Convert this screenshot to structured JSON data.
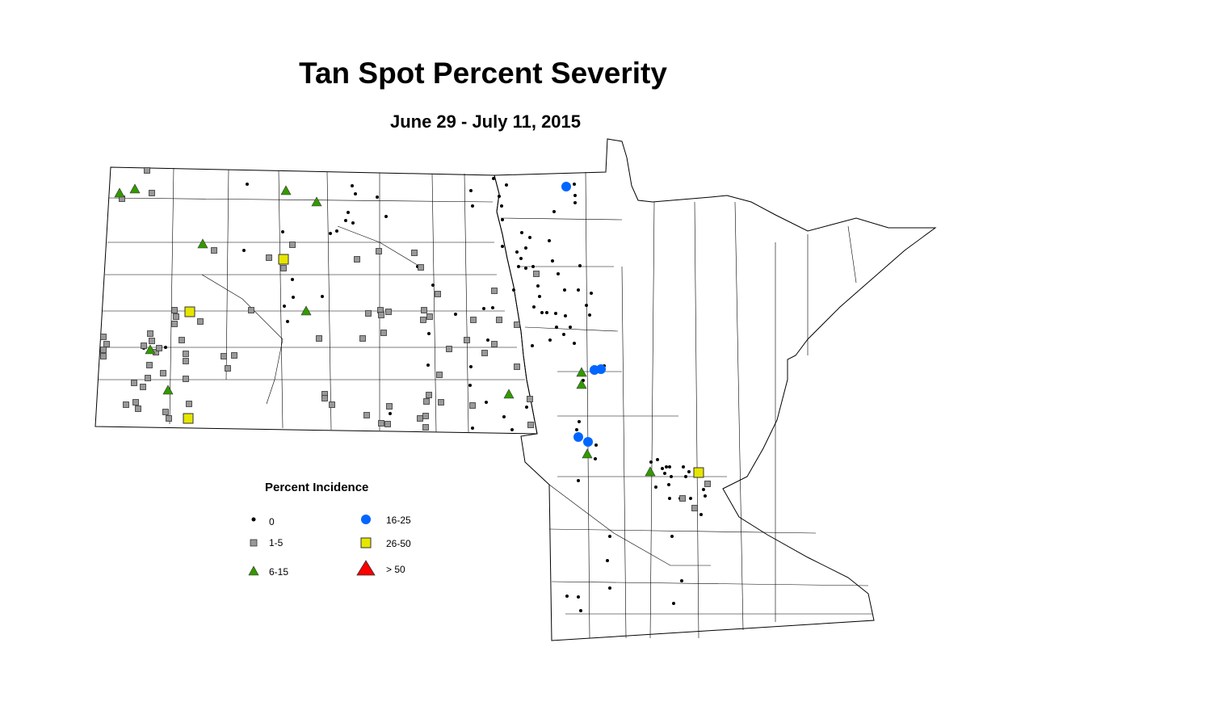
{
  "title": "Tan Spot Percent Severity",
  "subtitle": "June 29 - July 11, 2015",
  "legend": {
    "title": "Percent Incidence",
    "entries": [
      {
        "label": "0",
        "symbol": "dot",
        "color": "#000000"
      },
      {
        "label": "1-5",
        "symbol": "square",
        "color": "#999999"
      },
      {
        "label": "6-15",
        "symbol": "triangle",
        "color": "#339900"
      },
      {
        "label": "16-25",
        "symbol": "circle",
        "color": "#0066ff"
      },
      {
        "label": "26-50",
        "symbol": "square",
        "color": "#e6e600"
      },
      {
        "label": "> 50",
        "symbol": "triangle",
        "color": "#ff0000"
      }
    ]
  },
  "regions": [
    "North Dakota",
    "Minnesota"
  ]
}
